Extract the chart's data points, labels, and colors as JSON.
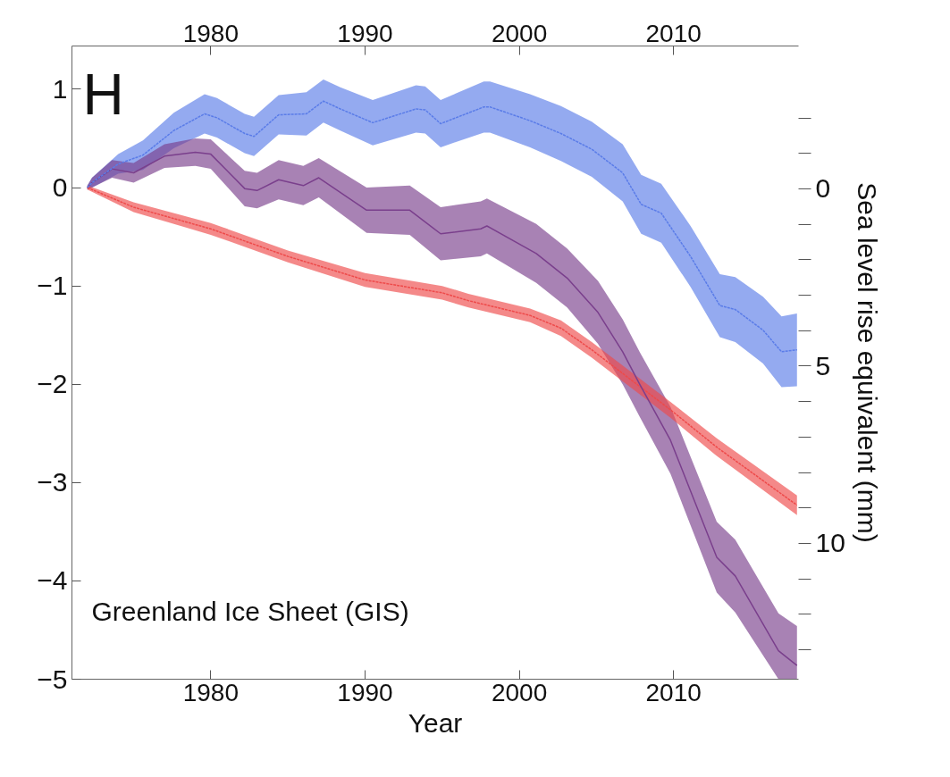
{
  "chart_data": {
    "type": "line",
    "xlabel": "Year",
    "y2label": "Sea level rise equivalent (mm)",
    "annotations": [
      "H",
      "Greenland Ice Sheet (GIS)"
    ],
    "xlim": [
      1971,
      2018.1
    ],
    "xticks": [
      1980,
      1990,
      2000,
      2010
    ],
    "x2lim": [
      1971,
      2018.1
    ],
    "x2ticks": [
      1980,
      1990,
      2000,
      2010
    ],
    "ylim": [
      -5,
      1.44
    ],
    "yticks": [
      -5,
      -4,
      -3,
      -2,
      -1,
      0,
      1
    ],
    "y2lim": [
      13.83,
      -4.03
    ],
    "y2ticks": [
      {
        "value": -2,
        "label": null
      },
      {
        "value": -1,
        "label": null
      },
      0,
      {
        "value": 1,
        "label": null
      },
      {
        "value": 2,
        "label": null
      },
      {
        "value": 3,
        "label": null
      },
      {
        "value": 4,
        "label": null
      },
      5,
      {
        "value": 6,
        "label": null
      },
      {
        "value": 7,
        "label": null
      },
      {
        "value": 8,
        "label": null
      },
      {
        "value": 9,
        "label": null
      },
      10,
      {
        "value": 11,
        "label": null
      },
      {
        "value": 12,
        "label": null
      },
      {
        "value": 13,
        "label": null
      }
    ],
    "grid": false,
    "marker": "none",
    "series": [
      {
        "color": "#5a7ce8",
        "line_style": "dashed",
        "x": [
          1972,
          1972.3,
          1974,
          1975.6,
          1977.6,
          1979.6,
          1980.4,
          1982.2,
          1982.8,
          1984.4,
          1986.2,
          1987.3,
          1988.4,
          1990.5,
          1993.3,
          1993.9,
          1994.9,
          1997.7,
          1998.1,
          2000.7,
          2002.7,
          2004.7,
          2006.7,
          2007.9,
          2009.2,
          2011.1,
          2013,
          2014,
          2015.8,
          2017,
          2018
        ],
        "values": [
          0,
          0.05,
          0.24,
          0.33,
          0.58,
          0.75,
          0.71,
          0.55,
          0.52,
          0.74,
          0.75,
          0.88,
          0.8,
          0.66,
          0.8,
          0.79,
          0.65,
          0.82,
          0.82,
          0.68,
          0.55,
          0.39,
          0.15,
          -0.17,
          -0.26,
          -0.7,
          -1.2,
          -1.24,
          -1.45,
          -1.67,
          -1.65
        ],
        "lower": [
          -0.02,
          0.0,
          0.14,
          0.18,
          0.4,
          0.55,
          0.51,
          0.35,
          0.32,
          0.54,
          0.53,
          0.66,
          0.58,
          0.43,
          0.56,
          0.55,
          0.41,
          0.56,
          0.56,
          0.41,
          0.27,
          0.11,
          -0.14,
          -0.47,
          -0.56,
          -1.01,
          -1.52,
          -1.57,
          -1.79,
          -2.03,
          -2.02
        ],
        "upper": [
          0.02,
          0.1,
          0.34,
          0.48,
          0.76,
          0.95,
          0.91,
          0.75,
          0.72,
          0.94,
          0.97,
          1.1,
          1.02,
          0.89,
          1.04,
          1.03,
          0.89,
          1.08,
          1.08,
          0.95,
          0.83,
          0.67,
          0.44,
          0.13,
          0.04,
          -0.39,
          -0.88,
          -0.91,
          -1.11,
          -1.31,
          -1.28
        ]
      },
      {
        "color": "#7a3f8c",
        "line_style": "solid",
        "x": [
          1972,
          1972.3,
          1973.6,
          1975,
          1977,
          1979,
          1980,
          1982.2,
          1983,
          1984.4,
          1986,
          1987,
          1990.1,
          1992.9,
          1994.9,
          1997.5,
          1997.9,
          2001.1,
          2003.1,
          2005.1,
          2006.7,
          2007.8,
          2009.8,
          2012.8,
          2014,
          2016.8,
          2018
        ],
        "values": [
          0,
          0.05,
          0.19,
          0.15,
          0.32,
          0.36,
          0.34,
          -0.01,
          -0.03,
          0.08,
          0.02,
          0.1,
          -0.23,
          -0.23,
          -0.47,
          -0.42,
          -0.39,
          -0.67,
          -0.92,
          -1.27,
          -1.67,
          -2.0,
          -2.57,
          -3.76,
          -3.95,
          -4.71,
          -4.86
        ],
        "lower": [
          -0.02,
          0.0,
          0.1,
          0.05,
          0.2,
          0.22,
          0.19,
          -0.19,
          -0.21,
          -0.12,
          -0.18,
          -0.1,
          -0.46,
          -0.48,
          -0.74,
          -0.7,
          -0.67,
          -0.97,
          -1.22,
          -1.59,
          -2.0,
          -2.33,
          -2.91,
          -4.12,
          -4.32,
          -5.0,
          -5.0
        ],
        "upper": [
          0.02,
          0.1,
          0.28,
          0.25,
          0.44,
          0.5,
          0.49,
          0.17,
          0.15,
          0.28,
          0.22,
          0.3,
          0.0,
          0.02,
          -0.2,
          -0.14,
          -0.11,
          -0.37,
          -0.62,
          -0.95,
          -1.34,
          -1.67,
          -2.23,
          -3.4,
          -3.58,
          -4.33,
          -4.46
        ]
      },
      {
        "color": "#ee4a4a",
        "line_style": "dashed",
        "x": [
          1972,
          1975,
          1980,
          1985,
          1990,
          1995,
          1996.7,
          2000.7,
          2002.7,
          2004.7,
          2006.7,
          2009.8,
          2012.8,
          2018
        ],
        "values": [
          0,
          -0.2,
          -0.42,
          -0.7,
          -0.94,
          -1.07,
          -1.15,
          -1.3,
          -1.43,
          -1.65,
          -1.89,
          -2.26,
          -2.64,
          -3.23
        ],
        "lower": [
          -0.02,
          -0.25,
          -0.48,
          -0.76,
          -1.01,
          -1.14,
          -1.22,
          -1.37,
          -1.51,
          -1.73,
          -1.97,
          -2.34,
          -2.73,
          -3.33
        ],
        "upper": [
          0.02,
          -0.15,
          -0.36,
          -0.64,
          -0.87,
          -1.0,
          -1.08,
          -1.23,
          -1.35,
          -1.57,
          -1.81,
          -2.18,
          -2.55,
          -3.13
        ]
      }
    ]
  }
}
